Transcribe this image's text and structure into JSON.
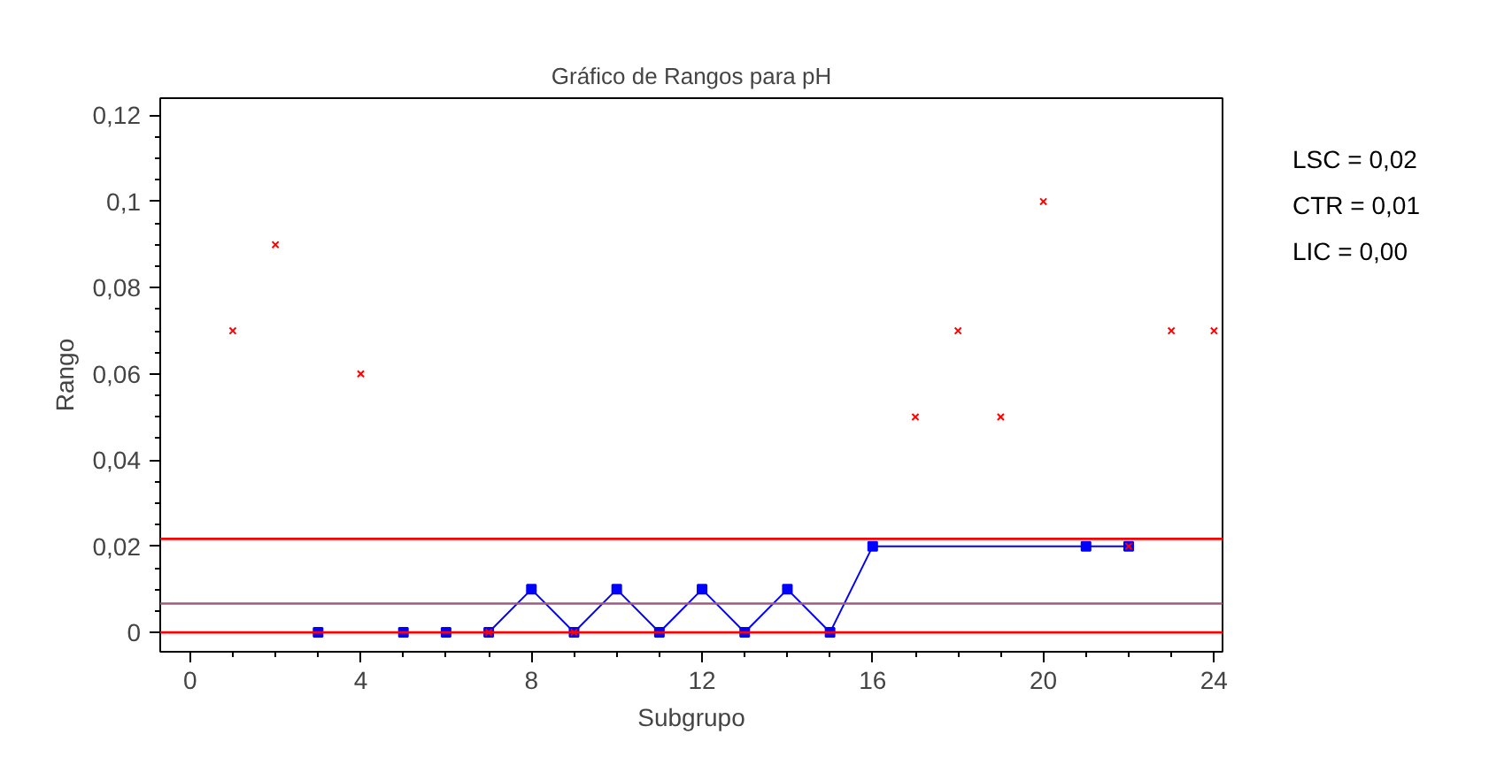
{
  "chart_data": {
    "type": "line",
    "title": "Gráfico de Rangos para pH",
    "xlabel": "Subgrupo",
    "ylabel": "Rango",
    "series": [
      {
        "color": "#0000ff",
        "marker": "square",
        "x": [
          3,
          5,
          6,
          7,
          8,
          9,
          10,
          11,
          12,
          13,
          14,
          15,
          16,
          21,
          22
        ],
        "values": [
          0,
          0,
          0,
          0,
          0.01,
          0,
          0.01,
          0,
          0.01,
          0,
          0.01,
          0,
          0.02,
          0.02,
          0.02
        ]
      },
      {
        "type": "scatter",
        "color": "#ff0000",
        "marker": "cross",
        "x": [
          1,
          2,
          4,
          7,
          9,
          17,
          18,
          19,
          20,
          22,
          23,
          24
        ],
        "values": [
          0.07,
          0.09,
          0.06,
          0,
          0,
          0.05,
          0.07,
          0.05,
          0.1,
          0.02,
          0.07,
          0.07
        ]
      }
    ],
    "ref_lines": [
      {
        "axis": "y",
        "value": 0.0217,
        "color": "#ff0000"
      },
      {
        "axis": "y",
        "value": 0.0067,
        "color": "#a05a80"
      },
      {
        "axis": "y",
        "value": 0,
        "color": "#ff0000"
      }
    ],
    "annotations": [
      "LSC = 0,02",
      "CTR = 0,01",
      "LIC = 0,00"
    ],
    "xlim": [
      -0.7,
      24.2
    ],
    "ylim": [
      -0.0045,
      0.124
    ],
    "xticks": [
      0,
      4,
      8,
      12,
      16,
      20,
      24
    ],
    "yticks": [
      {
        "value": 0,
        "label": "0"
      },
      {
        "value": 0.02,
        "label": "0,02"
      },
      {
        "value": 0.04,
        "label": "0,04"
      },
      {
        "value": 0.06,
        "label": "0,06"
      },
      {
        "value": 0.08,
        "label": "0,08"
      },
      {
        "value": 0.1,
        "label": "0,1"
      },
      {
        "value": 0.12,
        "label": "0,12"
      }
    ],
    "grid": false
  }
}
